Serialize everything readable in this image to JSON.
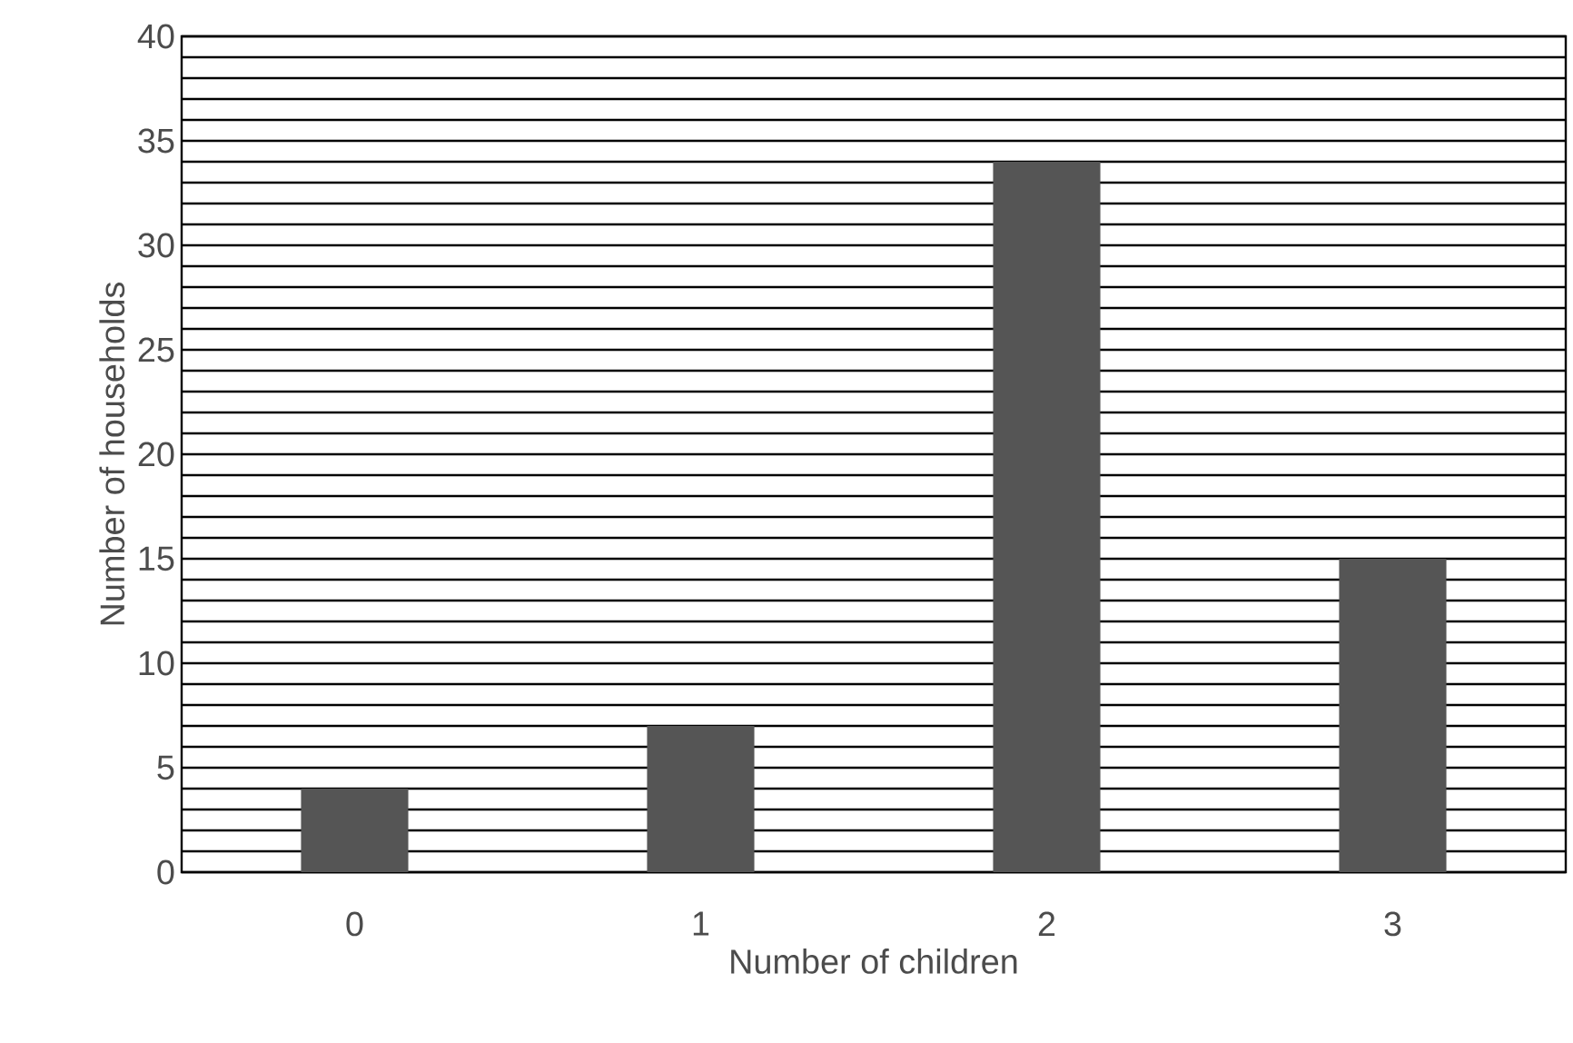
{
  "chart_data": {
    "type": "bar",
    "xlabel": "Number of children",
    "ylabel": "Number of households",
    "categories": [
      "0",
      "1",
      "2",
      "3"
    ],
    "values": [
      4,
      7,
      34,
      15
    ],
    "color": "#555555",
    "ylim": [
      0,
      40
    ],
    "yticks": [
      0,
      5,
      10,
      15,
      20,
      25,
      30,
      35,
      40
    ],
    "grid": "y"
  }
}
